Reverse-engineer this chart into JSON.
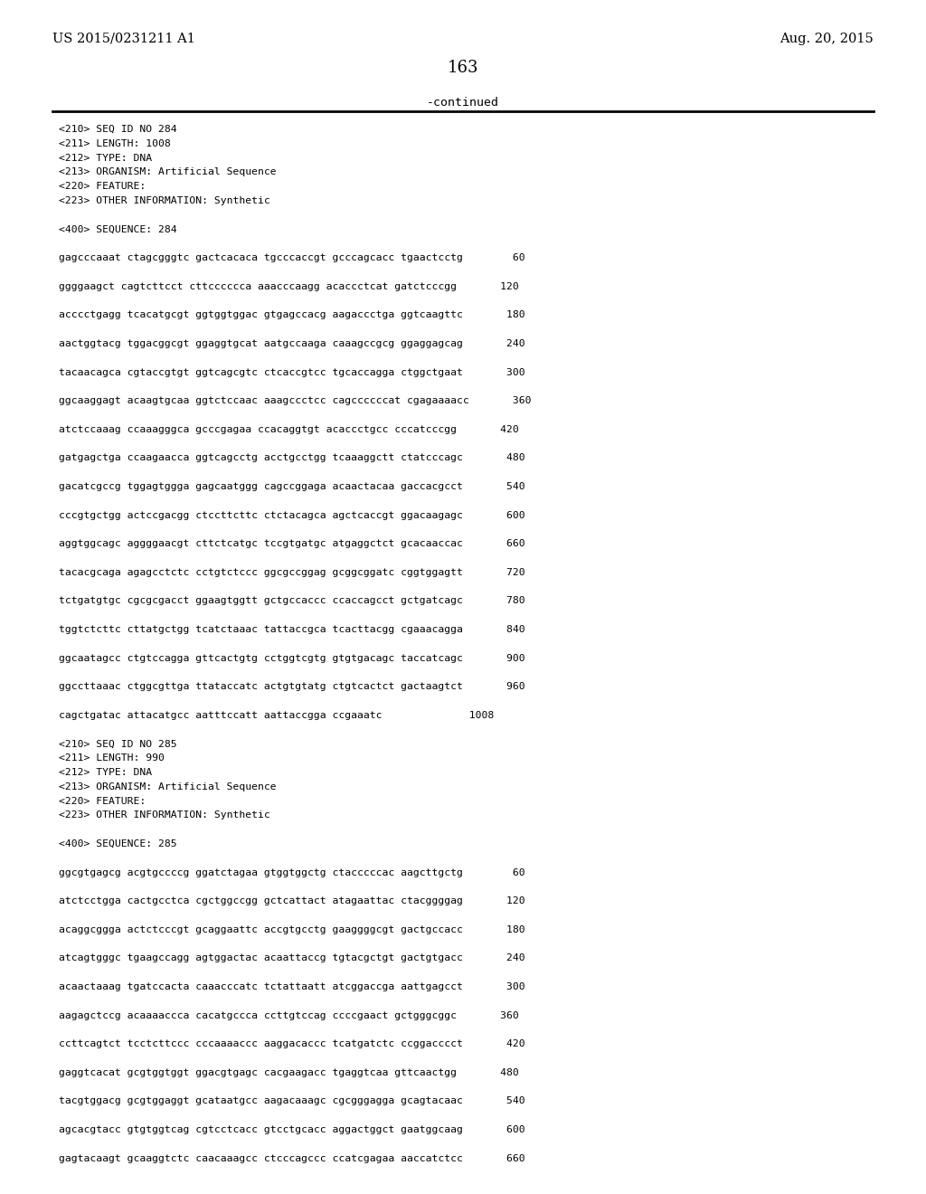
{
  "patent_left": "US 2015/0231211 A1",
  "patent_right": "Aug. 20, 2015",
  "page_number": "163",
  "continued_text": "-continued",
  "background_color": "#ffffff",
  "text_color": "#000000",
  "header_fontsize": 10.5,
  "page_num_fontsize": 13,
  "mono_fontsize": 8.2,
  "mono_lines": [
    "<210> SEQ ID NO 284",
    "<211> LENGTH: 1008",
    "<212> TYPE: DNA",
    "<213> ORGANISM: Artificial Sequence",
    "<220> FEATURE:",
    "<223> OTHER INFORMATION: Synthetic",
    "",
    "<400> SEQUENCE: 284",
    "",
    "gagcccaaat ctagcgggtc gactcacaca tgcccaccgt gcccagcacc tgaactcctg        60",
    "",
    "ggggaagct cagtcttcct cttcccccca aaacccaagg acaccctcat gatctcccgg       120",
    "",
    "acccctgagg tcacatgcgt ggtggtggac gtgagccacg aagaccctga ggtcaagttc       180",
    "",
    "aactggtacg tggacggcgt ggaggtgcat aatgccaaga caaagccgcg ggaggagcag       240",
    "",
    "tacaacagca cgtaccgtgt ggtcagcgtc ctcaccgtcc tgcaccagga ctggctgaat       300",
    "",
    "ggcaaggagt acaagtgcaa ggtctccaac aaagccctcc cagccccccat cgagaaaacc       360",
    "",
    "atctccaaag ccaaagggca gcccgagaa ccacaggtgt acaccctgcc cccatcccgg       420",
    "",
    "gatgagctga ccaagaacca ggtcagcctg acctgcctgg tcaaaggctt ctatcccagc       480",
    "",
    "gacatcgccg tggagtggga gagcaatggg cagccggaga acaactacaa gaccacgcct       540",
    "",
    "cccgtgctgg actccgacgg ctccttcttc ctctacagca agctcaccgt ggacaagagc       600",
    "",
    "aggtggcagc aggggaacgt cttctcatgc tccgtgatgc atgaggctct gcacaaccac       660",
    "",
    "tacacgcaga agagcctctc cctgtctccc ggcgccggag gcggcggatc cggtggagtt       720",
    "",
    "tctgatgtgc cgcgcgacct ggaagtggtt gctgccaccc ccaccagcct gctgatcagc       780",
    "",
    "tggtctcttc cttatgctgg tcatctaaac tattaccgca tcacttacgg cgaaacagga       840",
    "",
    "ggcaatagcc ctgtccagga gttcactgtg cctggtcgtg gtgtgacagc taccatcagc       900",
    "",
    "ggccttaaac ctggcgttga ttataccatc actgtgtatg ctgtcactct gactaagtct       960",
    "",
    "cagctgatac attacatgcc aatttccatt aattaccgga ccgaaatc              1008",
    "",
    "<210> SEQ ID NO 285",
    "<211> LENGTH: 990",
    "<212> TYPE: DNA",
    "<213> ORGANISM: Artificial Sequence",
    "<220> FEATURE:",
    "<223> OTHER INFORMATION: Synthetic",
    "",
    "<400> SEQUENCE: 285",
    "",
    "ggcgtgagcg acgtgccccg ggatctagaa gtggtggctg ctacccccac aagcttgctg        60",
    "",
    "atctcctgga cactgcctca cgctggccgg gctcattact atagaattac ctacggggag       120",
    "",
    "acaggcggga actctcccgt gcaggaattc accgtgcctg gaaggggcgt gactgccacc       180",
    "",
    "atcagtgggc tgaagccagg agtggactac acaattaccg tgtacgctgt gactgtgacc       240",
    "",
    "acaactaaag tgatccacta caaacccatc tctattaatt atcggaccga aattgagcct       300",
    "",
    "aagagctccg acaaaaccca cacatgccca ccttgtccag ccccgaact gctgggcggc       360",
    "",
    "ccttcagtct tcctcttccc cccaaaaccc aaggacaccc tcatgatctc ccggacccct       420",
    "",
    "gaggtcacat gcgtggtggt ggacgtgagc cacgaagacc tgaggtcaa gttcaactgg       480",
    "",
    "tacgtggacg gcgtggaggt gcataatgcc aagacaaagc cgcgggagga gcagtacaac       540",
    "",
    "agcacgtacc gtgtggtcag cgtcctcacc gtcctgcacc aggactggct gaatggcaag       600",
    "",
    "gagtacaagt gcaaggtctc caacaaagcc ctcccagccc ccatcgagaa aaccatctcc       660"
  ]
}
